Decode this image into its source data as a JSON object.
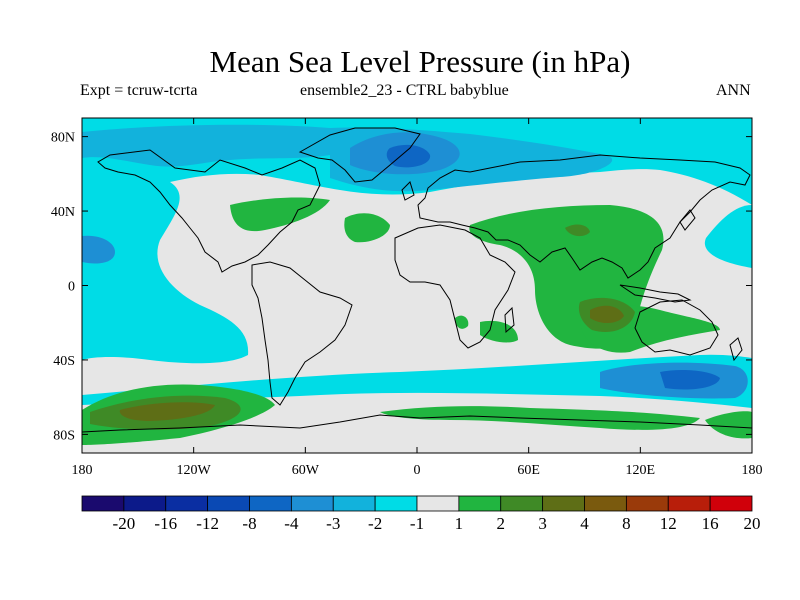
{
  "header": {
    "title": "Mean Sea Level Pressure (in hPa)",
    "left_label": "Expt = tcruw-tcrta",
    "center_label": "ensemble2_23 - CTRL babyblue",
    "right_label": "ANN"
  },
  "map": {
    "projection": "cylindrical equidistant",
    "lon_range": [
      -180,
      180
    ],
    "lat_range": [
      -90,
      90
    ],
    "lat_ticks": [
      {
        "value": 80,
        "label": "80N"
      },
      {
        "value": 40,
        "label": "40N"
      },
      {
        "value": 0,
        "label": "0"
      },
      {
        "value": -40,
        "label": "40S"
      },
      {
        "value": -80,
        "label": "80S"
      }
    ],
    "lon_ticks": [
      {
        "value": -180,
        "label": "180"
      },
      {
        "value": -120,
        "label": "120W"
      },
      {
        "value": -60,
        "label": "60W"
      },
      {
        "value": 0,
        "label": "0"
      },
      {
        "value": 60,
        "label": "60E"
      },
      {
        "value": 120,
        "label": "120E"
      },
      {
        "value": 180,
        "label": "180"
      }
    ],
    "background_color": "#e6e6e6",
    "coastline_color": "#000000"
  },
  "colorbar": {
    "boundaries": [
      "-20",
      "-16",
      "-12",
      "-8",
      "-4",
      "-3",
      "-2",
      "-1",
      "1",
      "2",
      "3",
      "4",
      "8",
      "12",
      "16",
      "20"
    ],
    "colors": [
      "#1a0a6e",
      "#0c1a8a",
      "#0a2ea2",
      "#0a49b4",
      "#0e66c4",
      "#1e8fd4",
      "#12b2dc",
      "#00dce6",
      "#e6e6e6",
      "#21b540",
      "#3f8a26",
      "#5e6e16",
      "#7a5a0e",
      "#9a3a0a",
      "#b81e0a",
      "#d0000a"
    ]
  }
}
